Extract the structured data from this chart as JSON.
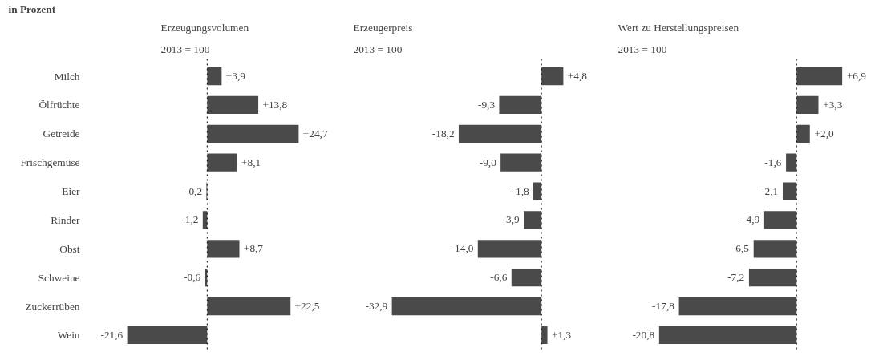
{
  "chart_data": [
    {
      "type": "bar",
      "orientation": "horizontal",
      "title": "Erzeugungsvolumen",
      "subtitle": "2013 = 100",
      "annotations": [
        "in Prozent"
      ],
      "categories": [
        "Milch",
        "Ölfrüchte",
        "Getreide",
        "Frischgemüse",
        "Eier",
        "Rinder",
        "Obst",
        "Schweine",
        "Zuckerrüben",
        "Wein"
      ],
      "values": [
        3.9,
        13.8,
        24.7,
        8.1,
        -0.2,
        -1.2,
        8.7,
        -0.6,
        22.5,
        -21.6
      ],
      "value_labels": [
        "+3,9",
        "+13,8",
        "+24,7",
        "+8,1",
        "-0,2",
        "-1,2",
        "+8,7",
        "-0,6",
        "+22,5",
        "-21,6"
      ],
      "color": "#4a4a4a",
      "tick_labels": "y",
      "ref_lines": [
        {
          "axis": "x",
          "value": 0,
          "line_style": "dotted"
        }
      ]
    },
    {
      "type": "bar",
      "orientation": "horizontal",
      "title": "Erzeugerpreis",
      "subtitle": "2013 = 100",
      "categories": [
        null,
        null,
        null,
        null,
        null,
        null,
        null,
        null,
        null,
        null
      ],
      "values": [
        4.8,
        -9.3,
        -18.2,
        -9.0,
        -1.8,
        -3.9,
        -14.0,
        -6.6,
        -32.9,
        1.3
      ],
      "value_labels": [
        "+4,8",
        "-9,3",
        "-18,2",
        "-9,0",
        "-1,8",
        "-3,9",
        "-14,0",
        "-6,6",
        "-32,9",
        "+1,3"
      ],
      "color": "#4a4a4a",
      "tick_labels": false,
      "ref_lines": [
        {
          "axis": "x",
          "value": 0,
          "line_style": "dotted"
        }
      ]
    },
    {
      "type": "bar",
      "orientation": "horizontal",
      "title": "Wert zu Herstellungspreisen",
      "subtitle": "2013 = 100",
      "categories": [
        null,
        null,
        null,
        null,
        null,
        null,
        null,
        null,
        null,
        null
      ],
      "values": [
        6.9,
        3.3,
        2.0,
        -1.6,
        -2.1,
        -4.9,
        -6.5,
        -7.2,
        -17.8,
        -20.8
      ],
      "value_labels": [
        "+6,9",
        "+3,3",
        "+2,0",
        "-1,6",
        "-2,1",
        "-4,9",
        "-6,5",
        "-7,2",
        "-17,8",
        "-20,8"
      ],
      "color": "#4a4a4a",
      "tick_labels": false,
      "ref_lines": [
        {
          "axis": "x",
          "value": 0,
          "line_style": "dotted"
        }
      ]
    }
  ]
}
